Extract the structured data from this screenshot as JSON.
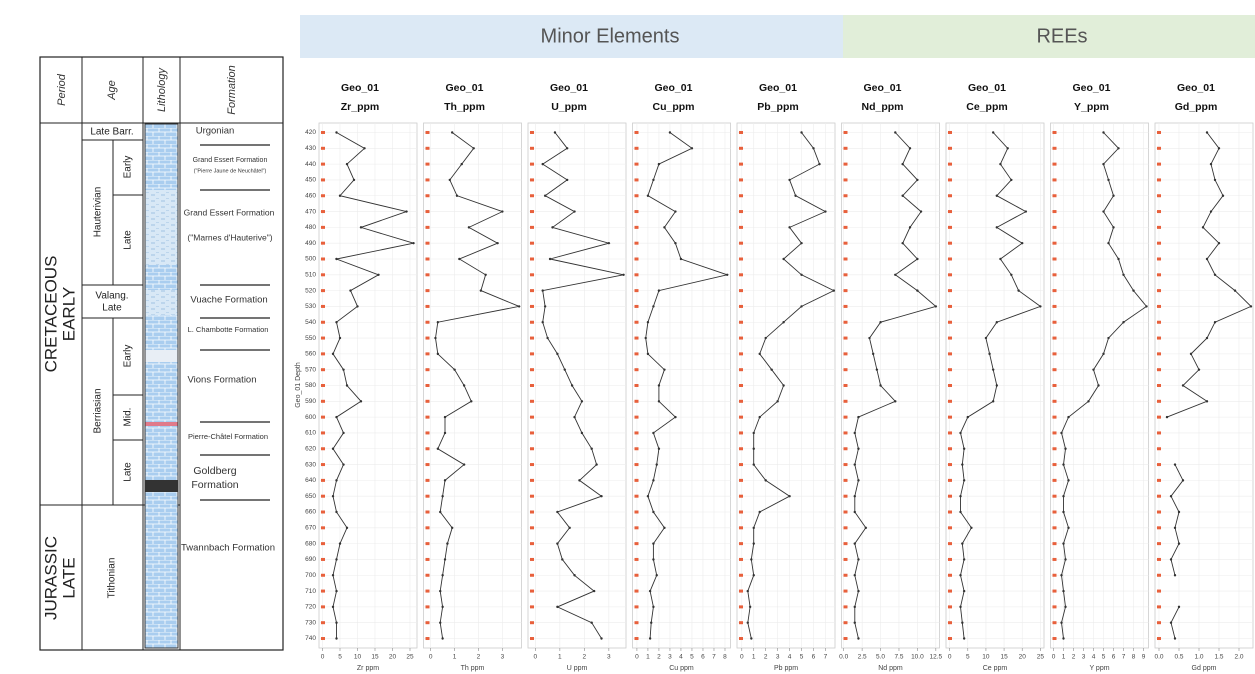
{
  "header": {
    "left": "Minor Elements",
    "right": "REEs"
  },
  "strat_column": {
    "headers": [
      "Period",
      "Age",
      "Lithology",
      "Formation"
    ],
    "periods": [
      [
        "CRETACEOUS",
        "EARLY"
      ],
      [
        "JURASSIC",
        "LATE"
      ]
    ],
    "ages": [
      "Late Barr.",
      "Hauterivian",
      "Early",
      "Late",
      "Valang.",
      "Late",
      "Berriasian",
      "Early",
      "Mid.",
      "Late",
      "Tithonian"
    ],
    "formations": [
      "Urgonian",
      "Grand Essert Formation",
      "(\"Pierre Jaune de Neuchâtel\")",
      "Grand Essert Formation",
      "(\"Marnes d'Hauterive\")",
      "Vuache Formation",
      "L. Chambotte Formation",
      "Vions Formation",
      "Pierre-Châtel Formation",
      "Goldberg",
      "Formation",
      "Twannbach Formation"
    ]
  },
  "chart_data": {
    "type": "line",
    "y_label": "Geo_01 Depth",
    "ylim": [
      414,
      746
    ],
    "yticks": [
      420,
      430,
      440,
      450,
      460,
      470,
      480,
      490,
      500,
      510,
      520,
      530,
      540,
      550,
      560,
      570,
      580,
      590,
      600,
      610,
      620,
      630,
      640,
      650,
      660,
      670,
      680,
      690,
      700,
      710,
      720,
      730,
      740
    ],
    "depths": [
      420,
      430,
      440,
      450,
      460,
      470,
      480,
      490,
      500,
      510,
      520,
      530,
      540,
      550,
      560,
      570,
      580,
      590,
      600,
      610,
      620,
      630,
      640,
      650,
      660,
      670,
      680,
      690,
      700,
      710,
      720,
      730,
      740
    ],
    "line_color": "#333333",
    "marker_color": "#e8603c",
    "grid": true,
    "panels": [
      {
        "title": "Geo_01",
        "subtitle": "Zr_ppm",
        "x_label": "Zr ppm",
        "xlim": [
          -1,
          27
        ],
        "xticks": [
          0,
          5,
          10,
          15,
          20,
          25
        ],
        "values": [
          4,
          12,
          7,
          9,
          5,
          24,
          11,
          26,
          4,
          16,
          8,
          10,
          4,
          5,
          3,
          6,
          7,
          11,
          4,
          6,
          3,
          6,
          4,
          3,
          4,
          7,
          5,
          4,
          3,
          4,
          3,
          4,
          4
        ]
      },
      {
        "title": "Geo_01",
        "subtitle": "Th_ppm",
        "x_label": "Th ppm",
        "xlim": [
          -0.3,
          3.8
        ],
        "xticks": [
          0,
          1,
          2,
          3
        ],
        "values": [
          0.9,
          1.8,
          1.3,
          0.8,
          1.1,
          3.0,
          1.6,
          2.8,
          1.2,
          2.3,
          2.1,
          3.7,
          0.3,
          0.2,
          0.3,
          1.0,
          1.4,
          1.7,
          0.6,
          0.6,
          0.3,
          1.4,
          0.6,
          0.5,
          0.4,
          0.9,
          0.7,
          0.6,
          0.5,
          0.4,
          0.5,
          0.4,
          0.5
        ]
      },
      {
        "title": "Geo_01",
        "subtitle": "U_ppm",
        "x_label": "U ppm",
        "xlim": [
          -0.3,
          3.7
        ],
        "xticks": [
          0,
          1,
          2,
          3
        ],
        "values": [
          0.8,
          1.3,
          0.3,
          1.3,
          0.4,
          1.6,
          0.7,
          3.0,
          0.6,
          3.6,
          0.3,
          0.4,
          0.3,
          0.5,
          0.9,
          1.2,
          1.5,
          1.9,
          1.6,
          1.9,
          2.3,
          2.5,
          1.8,
          2.7,
          0.9,
          1.4,
          0.9,
          1.1,
          1.6,
          2.4,
          0.9,
          2.3,
          2.7
        ]
      },
      {
        "title": "Geo_01",
        "subtitle": "Cu_ppm",
        "x_label": "Cu ppm",
        "xlim": [
          -0.4,
          8.5
        ],
        "xticks": [
          0,
          1,
          2,
          3,
          4,
          5,
          6,
          7,
          8
        ],
        "values": [
          3,
          5,
          2,
          1.5,
          1,
          3.5,
          2.5,
          3.5,
          4,
          8.2,
          2,
          1.5,
          1,
          0.8,
          1,
          2.5,
          2,
          2,
          3.5,
          1.5,
          2,
          1.8,
          1.5,
          1,
          1.5,
          2.5,
          1.5,
          1.5,
          1.8,
          1.2,
          1.5,
          1.3,
          1.2
        ]
      },
      {
        "title": "Geo_01",
        "subtitle": "Pb_ppm",
        "x_label": "Pb ppm",
        "xlim": [
          -0.4,
          7.8
        ],
        "xticks": [
          0,
          1,
          2,
          3,
          4,
          5,
          6,
          7
        ],
        "values": [
          5,
          6,
          6.5,
          4,
          4.5,
          7,
          4,
          5,
          3.5,
          5,
          7.7,
          5,
          3.5,
          2,
          1.5,
          2.5,
          3.5,
          3,
          1.5,
          1,
          1,
          1,
          2,
          4,
          1.5,
          1,
          1,
          0.8,
          1,
          0.5,
          0.7,
          0.5,
          0.8
        ]
      },
      {
        "title": "Geo_01",
        "subtitle": "Nd_ppm",
        "x_label": "Nd ppm",
        "xlim": [
          -0.3,
          13
        ],
        "xticks": [
          {
            "value": 0,
            "label": "0.0"
          },
          2.5,
          {
            "value": 5,
            "label": "5.0"
          },
          7.5,
          {
            "value": 10,
            "label": "10.0"
          },
          12.5
        ],
        "values": [
          7,
          9,
          8,
          10,
          8,
          10.5,
          9,
          8,
          10,
          7,
          10,
          12.5,
          5,
          3.5,
          4,
          4.5,
          5,
          7,
          2,
          1.5,
          2,
          1.5,
          2,
          1.5,
          1.5,
          3,
          1.5,
          2,
          1.5,
          2,
          1.5,
          1.5,
          2
        ]
      },
      {
        "title": "Geo_01",
        "subtitle": "Ce_ppm",
        "x_label": "Ce ppm",
        "xlim": [
          -1,
          26
        ],
        "xticks": [
          0,
          5,
          10,
          15,
          20,
          25
        ],
        "values": [
          12,
          16,
          14,
          17,
          13,
          21,
          13,
          20,
          14,
          17,
          19,
          25,
          13,
          10,
          11,
          12,
          13,
          12,
          5,
          3,
          4,
          3.5,
          4,
          3,
          3,
          6,
          3.5,
          4,
          3,
          4,
          3,
          3.5,
          4
        ]
      },
      {
        "title": "Geo_01",
        "subtitle": "Y_ppm",
        "x_label": "Y ppm",
        "xlim": [
          -0.3,
          9.5
        ],
        "xticks": [
          0,
          1,
          2,
          3,
          4,
          5,
          6,
          7,
          8,
          9
        ],
        "values": [
          5,
          6.5,
          5,
          5.5,
          6,
          5,
          6,
          5.5,
          6.5,
          7,
          8,
          9.3,
          7,
          5.5,
          5,
          4,
          4.5,
          3.5,
          1.5,
          0.8,
          1.2,
          1,
          1.5,
          1,
          1,
          1.5,
          1,
          1.2,
          0.8,
          1,
          1.2,
          0.8,
          1
        ]
      },
      {
        "title": "Geo_01",
        "subtitle": "Gd_ppm",
        "x_label": "Gd ppm",
        "xlim": [
          -0.1,
          2.35
        ],
        "xticks": [
          {
            "value": 0,
            "label": "0.0"
          },
          0.5,
          {
            "value": 1,
            "label": "1.0"
          },
          1.5,
          {
            "value": 2,
            "label": "2.0"
          }
        ],
        "values": [
          1.2,
          1.5,
          1.3,
          1.4,
          1.6,
          1.3,
          1.1,
          1.5,
          1.2,
          1.4,
          1.9,
          2.3,
          1.4,
          1.2,
          0.8,
          1.0,
          0.6,
          1.2,
          0.2,
          null,
          null,
          0.4,
          0.6,
          0.3,
          0.5,
          0.4,
          0.5,
          0.3,
          0.4,
          null,
          0.5,
          0.3,
          0.4
        ]
      }
    ]
  }
}
